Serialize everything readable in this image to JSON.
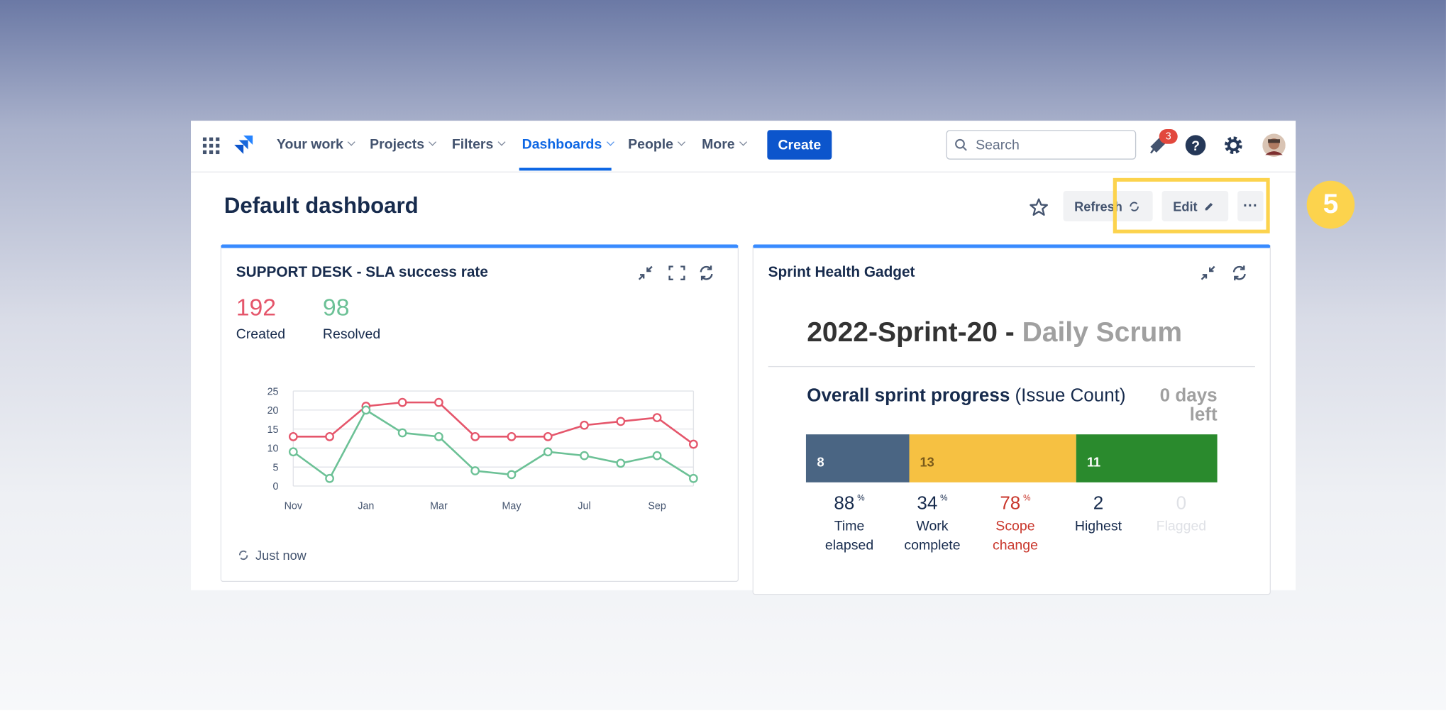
{
  "nav": {
    "items": [
      "Your work",
      "Projects",
      "Filters",
      "Dashboards",
      "People",
      "More"
    ],
    "active": 3,
    "create": "Create",
    "search_placeholder": "Search",
    "notification_count": 3
  },
  "page": {
    "title": "Default dashboard",
    "refresh": "Refresh",
    "edit": "Edit",
    "step_badge": 5
  },
  "sla_gadget": {
    "title": "SUPPORT DESK - SLA success rate",
    "footer": "Just now",
    "chart_data": {
      "type": "line",
      "categories": [
        "Nov",
        null,
        "Jan",
        null,
        "Mar",
        null,
        "May",
        null,
        "Jul",
        null,
        "Sep",
        null
      ],
      "series": [
        {
          "name": "Created",
          "total": 192,
          "color": "#e5566b",
          "values": [
            13,
            13,
            21,
            22,
            22,
            13,
            13,
            13,
            16,
            17,
            18,
            11
          ]
        },
        {
          "name": "Resolved",
          "total": 98,
          "color": "#6cc196",
          "values": [
            9,
            2,
            20,
            14,
            13,
            4,
            3,
            9,
            8,
            6,
            8,
            2
          ]
        }
      ],
      "ylim": [
        0,
        25
      ],
      "yticks": [
        0,
        5,
        10,
        15,
        20,
        25
      ],
      "grid": true
    }
  },
  "sprint_gadget": {
    "title": "Sprint Health Gadget",
    "sprint_name": "2022-Sprint-20 - ",
    "board_name": "Daily Scrum",
    "progress_title": "Overall sprint progress",
    "progress_subtitle": "(Issue Count)",
    "days_left": "0 days left",
    "progress_bar": {
      "segments": [
        {
          "value": 8,
          "color": "#4a6583",
          "text_color": "#ffffff"
        },
        {
          "value": 13,
          "color": "#f6c142",
          "text_color": "#7a5a1a"
        },
        {
          "value": 11,
          "color": "#2a8a2d",
          "text_color": "#ffffff"
        }
      ]
    },
    "stats": [
      {
        "value": 88,
        "unit": "%",
        "label": "Time elapsed",
        "color": "#172b4d"
      },
      {
        "value": 34,
        "unit": "%",
        "label": "Work complete",
        "color": "#172b4d"
      },
      {
        "value": 78,
        "unit": "%",
        "label": "Scope change",
        "color": "#c9372c"
      },
      {
        "value": 2,
        "label": "Highest",
        "color": "#172b4d"
      },
      {
        "value": 0,
        "label": "Flagged",
        "color": "#dfe1e6"
      }
    ]
  }
}
